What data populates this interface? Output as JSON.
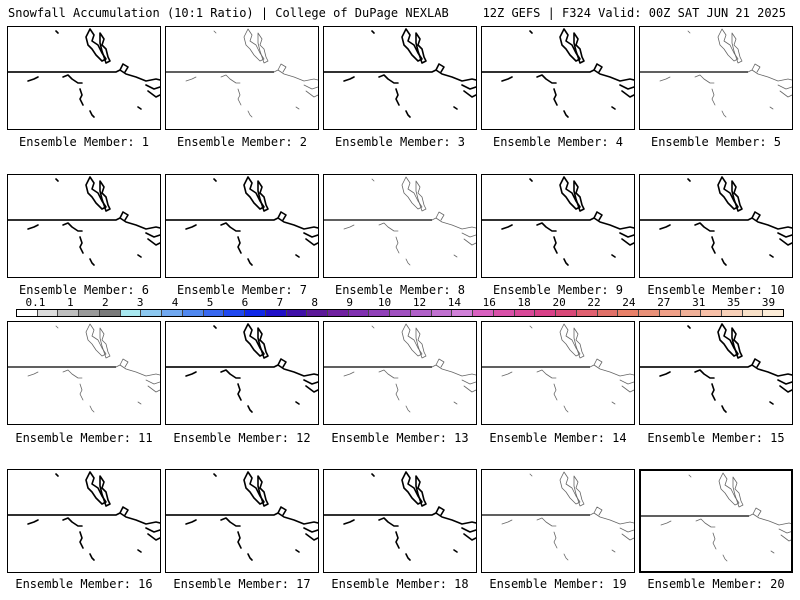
{
  "header": {
    "left": "Snowfall Accumulation (10:1 Ratio) | College of DuPage NEXLAB",
    "right": "12Z GEFS | F324 Valid: 00Z SAT JUN 21 2025"
  },
  "members": [
    {
      "label": "Ensemble Member: 1",
      "style": "bold"
    },
    {
      "label": "Ensemble Member: 2",
      "style": "light"
    },
    {
      "label": "Ensemble Member: 3",
      "style": "bold"
    },
    {
      "label": "Ensemble Member: 4",
      "style": "bold"
    },
    {
      "label": "Ensemble Member: 5",
      "style": "light"
    },
    {
      "label": "Ensemble Member: 6",
      "style": "bold"
    },
    {
      "label": "Ensemble Member: 7",
      "style": "bold"
    },
    {
      "label": "Ensemble Member: 8",
      "style": "light"
    },
    {
      "label": "Ensemble Member: 9",
      "style": "bold"
    },
    {
      "label": "Ensemble Member: 10",
      "style": "bold"
    },
    {
      "label": "Ensemble Member: 11",
      "style": "light"
    },
    {
      "label": "Ensemble Member: 12",
      "style": "bold"
    },
    {
      "label": "Ensemble Member: 13",
      "style": "light"
    },
    {
      "label": "Ensemble Member: 14",
      "style": "light"
    },
    {
      "label": "Ensemble Member: 15",
      "style": "bold"
    },
    {
      "label": "Ensemble Member: 16",
      "style": "bold"
    },
    {
      "label": "Ensemble Member: 17",
      "style": "bold"
    },
    {
      "label": "Ensemble Member: 18",
      "style": "bold"
    },
    {
      "label": "Ensemble Member: 19",
      "style": "light"
    },
    {
      "label": "Ensemble Member: 20",
      "style": "light"
    }
  ],
  "colorbar": {
    "ticks": [
      "0.1",
      "1",
      "2",
      "3",
      "4",
      "5",
      "6",
      "7",
      "8",
      "9",
      "10",
      "12",
      "14",
      "16",
      "18",
      "20",
      "22",
      "24",
      "27",
      "31",
      "35",
      "39"
    ],
    "colors": [
      "#ffffff",
      "#dcdcdc",
      "#bebebe",
      "#9a9a9a",
      "#7a7a7a",
      "#a8e8f0",
      "#8cc8f0",
      "#70a8f0",
      "#5088f0",
      "#3868f0",
      "#2048f0",
      "#1028e8",
      "#2010c8",
      "#4010a8",
      "#5c1898",
      "#7020a0",
      "#8030b0",
      "#9040b8",
      "#a050c0",
      "#b060c8",
      "#c070d0",
      "#d080d8",
      "#d860c0",
      "#d850a8",
      "#d84898",
      "#d84088",
      "#d84878",
      "#e06070",
      "#e07068",
      "#e88068",
      "#e89078",
      "#f0a088",
      "#f0b098",
      "#f8c0a8",
      "#f8d0b8",
      "#f8e0c8",
      "#fcecd8"
    ]
  }
}
